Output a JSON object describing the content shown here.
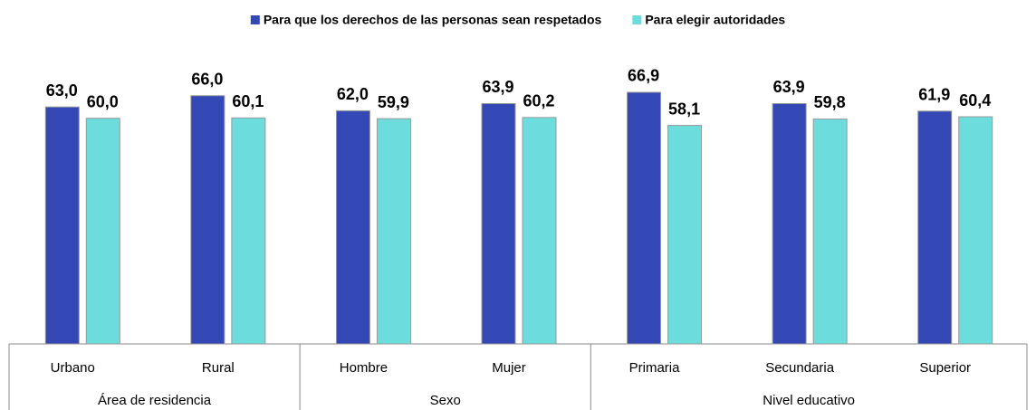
{
  "chart_data": {
    "type": "bar",
    "groups": [
      {
        "name": "Área de residencia",
        "categories": [
          "Urbano",
          "Rural"
        ]
      },
      {
        "name": "Sexo",
        "categories": [
          "Hombre",
          "Mujer"
        ]
      },
      {
        "name": "Nivel educativo",
        "categories": [
          "Primaria",
          "Secundaria",
          "Superior"
        ]
      }
    ],
    "series": [
      {
        "name": "Para que los derechos de las personas sean respetados",
        "color": "#3347b5",
        "label_color": "#4cbcc4",
        "values": [
          63.0,
          66.0,
          62.0,
          63.9,
          66.9,
          63.9,
          61.9
        ],
        "value_labels": [
          "63,0",
          "66,0",
          "62,0",
          "63,9",
          "66,9",
          "63,9",
          "61,9"
        ]
      },
      {
        "name": "Para elegir autoridades",
        "color": "#6cdcdc",
        "label_color": "#4cbcc4",
        "values": [
          60.0,
          60.1,
          59.9,
          60.2,
          58.1,
          59.8,
          60.4
        ],
        "value_labels": [
          "60,0",
          "60,1",
          "59,9",
          "60,2",
          "58,1",
          "59,8",
          "60,4"
        ]
      }
    ],
    "ylim": [
      0,
      90
    ],
    "legend": "top"
  }
}
